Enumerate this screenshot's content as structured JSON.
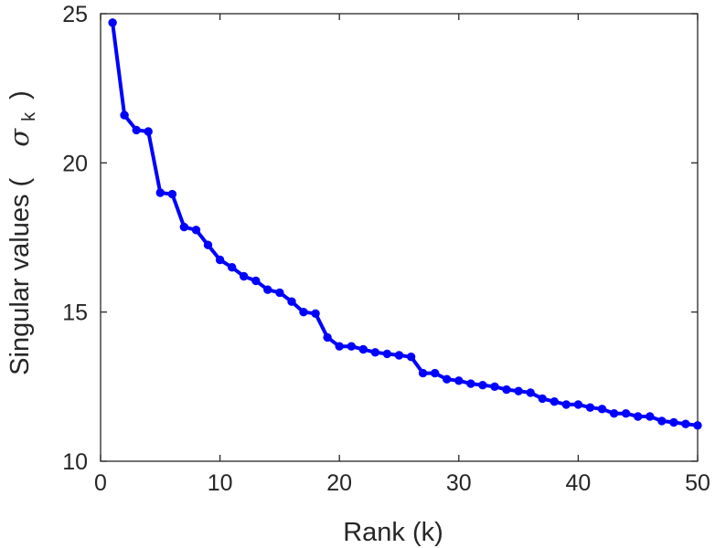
{
  "chart_data": {
    "type": "line",
    "title": "",
    "xlabel": "Rank (k)",
    "ylabel": {
      "prefix": "Singular values (",
      "symbol": "σ",
      "subscript": "k",
      "suffix": ")"
    },
    "xlim": [
      0,
      50
    ],
    "ylim": [
      10,
      25
    ],
    "xticks": [
      0,
      10,
      20,
      30,
      40,
      50
    ],
    "yticks": [
      10,
      15,
      20,
      25
    ],
    "grid": false,
    "legend": "none",
    "series": [
      {
        "color": "#0000ff",
        "marker": "circle",
        "x": [
          1,
          2,
          3,
          4,
          5,
          6,
          7,
          8,
          9,
          10,
          11,
          12,
          13,
          14,
          15,
          16,
          17,
          18,
          19,
          20,
          21,
          22,
          23,
          24,
          25,
          26,
          27,
          28,
          29,
          30,
          31,
          32,
          33,
          34,
          35,
          36,
          37,
          38,
          39,
          40,
          41,
          42,
          43,
          44,
          45,
          46,
          47,
          48,
          49,
          50
        ],
        "values": [
          24.7,
          21.6,
          21.1,
          21.05,
          19.0,
          18.95,
          17.85,
          17.75,
          17.25,
          16.75,
          16.5,
          16.2,
          16.05,
          15.75,
          15.65,
          15.35,
          15.0,
          14.95,
          14.15,
          13.85,
          13.85,
          13.75,
          13.65,
          13.6,
          13.55,
          13.5,
          12.95,
          12.95,
          12.75,
          12.7,
          12.6,
          12.55,
          12.5,
          12.4,
          12.35,
          12.3,
          12.1,
          12.0,
          11.9,
          11.9,
          11.8,
          11.75,
          11.6,
          11.6,
          11.5,
          11.5,
          11.35,
          11.3,
          11.25,
          11.2
        ]
      }
    ]
  }
}
